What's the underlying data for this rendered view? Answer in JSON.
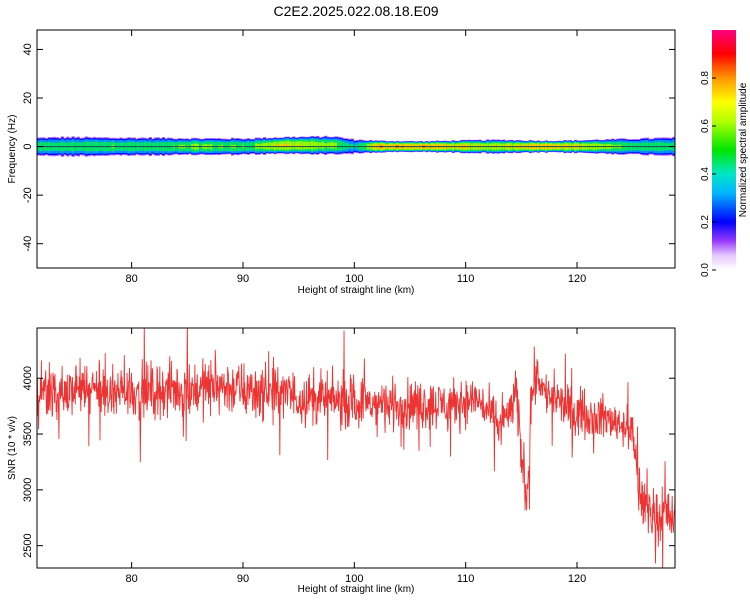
{
  "title": "C2E2.2025.022.08.18.E09",
  "chart_data": [
    {
      "type": "heatmap",
      "xlabel": "Height of straight line (km)",
      "ylabel": "Frequency (Hz)",
      "xlim": [
        71.5,
        128.8
      ],
      "ylim": [
        -50,
        48
      ],
      "xticks": [
        80,
        90,
        100,
        110,
        120
      ],
      "yticks": [
        -40,
        -20,
        0,
        20,
        40
      ],
      "grid": false,
      "colorbar": {
        "label": "Normalized spectral amplitude",
        "range": [
          0,
          1
        ],
        "ticks": [
          "0.0",
          "0.2",
          "0.4",
          "0.6",
          "0.8"
        ],
        "tick_values": [
          0.0,
          0.2,
          0.4,
          0.6,
          0.8
        ]
      },
      "band": {
        "x": [
          71.5,
          74,
          78,
          82,
          86,
          90,
          94,
          98,
          100,
          102,
          106,
          110,
          113,
          115,
          117,
          120,
          124,
          128.8
        ],
        "center_hz": [
          0,
          0,
          0,
          0,
          0,
          0,
          0.5,
          0.5,
          0,
          0,
          0,
          0,
          0,
          0,
          0,
          0,
          0,
          0
        ],
        "halfwidth_hz": [
          3.5,
          3.8,
          3.5,
          3.5,
          3.2,
          3.2,
          3.2,
          3.5,
          2.8,
          2.2,
          2.0,
          2.4,
          2.6,
          2.4,
          2.2,
          2.4,
          3.0,
          3.6
        ],
        "peak_amplitude": [
          0.55,
          0.55,
          0.6,
          0.55,
          0.65,
          0.6,
          0.8,
          0.65,
          0.45,
          0.9,
          0.9,
          0.8,
          0.75,
          0.85,
          0.9,
          0.8,
          0.6,
          0.55
        ]
      }
    },
    {
      "type": "line",
      "xlabel": "Height of straight line (km)",
      "ylabel": "SNR (10 * v/v)",
      "xlim": [
        71.5,
        128.8
      ],
      "ylim": [
        2300,
        4450
      ],
      "xticks": [
        80,
        90,
        100,
        110,
        120
      ],
      "yticks": [
        2500,
        3000,
        3500,
        4000
      ],
      "grid": false,
      "color": "#ee3333",
      "series": [
        {
          "x": [
            71.5,
            75,
            80,
            85,
            88,
            92,
            96,
            100,
            104,
            108,
            110,
            111,
            112,
            113,
            114,
            114.5,
            115,
            115.5,
            116,
            116.5,
            117,
            118,
            120,
            122,
            124,
            125,
            125.5,
            126,
            127,
            128,
            128.8
          ],
          "mean": [
            3850,
            3900,
            3880,
            3900,
            3930,
            3870,
            3820,
            3780,
            3760,
            3770,
            3790,
            3820,
            3700,
            3580,
            3700,
            3850,
            3350,
            2950,
            3950,
            4050,
            3880,
            3800,
            3700,
            3650,
            3600,
            3500,
            3050,
            2850,
            2750,
            2800,
            2720
          ],
          "spread": [
            170,
            180,
            180,
            190,
            190,
            180,
            180,
            170,
            170,
            160,
            160,
            150,
            150,
            150,
            150,
            180,
            200,
            180,
            200,
            160,
            150,
            150,
            150,
            140,
            140,
            150,
            180,
            160,
            160,
            170,
            200
          ]
        }
      ]
    }
  ]
}
